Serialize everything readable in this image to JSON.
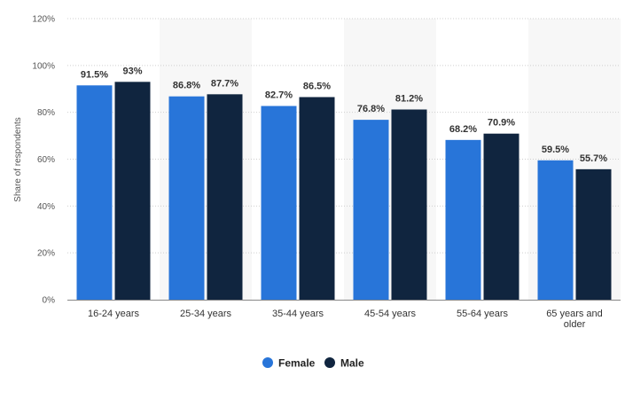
{
  "chart_data": {
    "type": "bar",
    "ylabel": "Share of respondents",
    "ylim": [
      0,
      120
    ],
    "yticks": [
      0,
      20,
      40,
      60,
      80,
      100,
      120
    ],
    "ytick_labels": [
      "0%",
      "20%",
      "40%",
      "60%",
      "80%",
      "100%",
      "120%"
    ],
    "categories": [
      [
        "16-24 years"
      ],
      [
        "25-34 years"
      ],
      [
        "35-44 years"
      ],
      [
        "45-54 years"
      ],
      [
        "55-64 years"
      ],
      [
        "65 years and",
        "older"
      ]
    ],
    "series": [
      {
        "name": "Female",
        "color": "#2875d9",
        "values": [
          91.5,
          86.8,
          82.7,
          76.8,
          68.2,
          59.5
        ],
        "labels": [
          "91.5%",
          "86.8%",
          "82.7%",
          "76.8%",
          "68.2%",
          "59.5%"
        ]
      },
      {
        "name": "Male",
        "color": "#10253f",
        "values": [
          93,
          87.7,
          86.5,
          81.2,
          70.9,
          55.7
        ],
        "labels": [
          "93%",
          "87.7%",
          "86.5%",
          "81.2%",
          "70.9%",
          "55.7%"
        ]
      }
    ],
    "grid": true,
    "legend_position": "bottom-center"
  }
}
